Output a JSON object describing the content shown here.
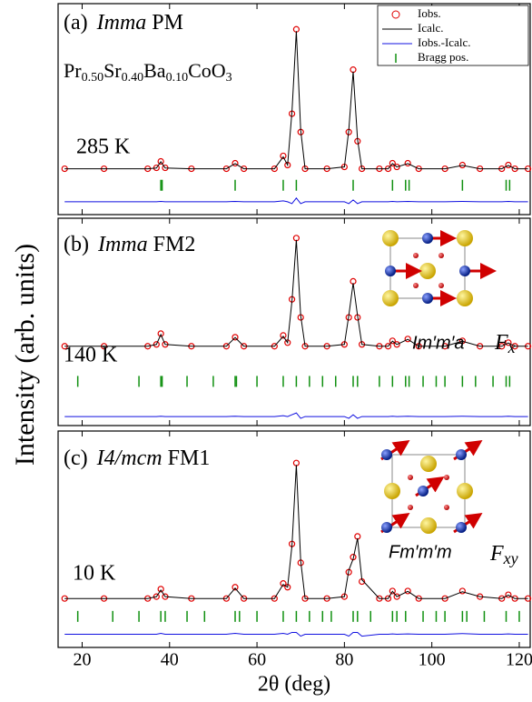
{
  "chart_data": [
    {
      "type": "line",
      "panel_label": "(a)",
      "space_group": "Imma",
      "phase": "PM",
      "formula_parts": [
        "Pr",
        "0.50",
        "Sr",
        "0.40",
        "Ba",
        "0.10",
        "CoO",
        "3"
      ],
      "temperature": "285 K",
      "legend": "upper right",
      "xlim": [
        14.5,
        122.5
      ],
      "xticks": [
        20,
        40,
        60,
        80,
        100,
        120
      ],
      "ylim": [
        -15,
        100
      ],
      "x": [
        16,
        25,
        35,
        37,
        38,
        39,
        45,
        53,
        55,
        57,
        64,
        66,
        67,
        68,
        69,
        70,
        71,
        76,
        80,
        81,
        82,
        83,
        84,
        88,
        90,
        91,
        92,
        94.5,
        97,
        103,
        107,
        111,
        116,
        117.5,
        119,
        122
      ],
      "series": [
        {
          "name": "Iobs.",
          "color": "#e00000",
          "marker": "circle",
          "values": [
            10,
            10,
            10,
            10.5,
            14,
            10.5,
            10,
            10,
            13,
            10,
            10,
            17,
            12,
            40,
            86,
            30,
            10,
            10,
            11,
            30,
            64,
            25,
            10,
            10,
            10,
            13,
            11,
            13,
            10,
            10,
            12,
            10,
            10,
            12,
            10,
            10
          ]
        },
        {
          "name": "Icalc.",
          "color": "#000000",
          "values": [
            10,
            10,
            10,
            10.4,
            13.8,
            10.4,
            10,
            10,
            12.8,
            10,
            10,
            16.5,
            12,
            41,
            85,
            31,
            10,
            10,
            11,
            31,
            63,
            26,
            10,
            10,
            10,
            12.8,
            11,
            12.8,
            10,
            10,
            11.8,
            10,
            10,
            11.8,
            10,
            10
          ]
        },
        {
          "name": "Iobs.-Icalc.",
          "color": "#1010e0",
          "values": [
            -8,
            -8,
            -8,
            -8,
            -7.8,
            -8,
            -8,
            -8,
            -7.8,
            -8,
            -8,
            -7.5,
            -8,
            -9,
            -6,
            -9,
            -8,
            -8,
            -8,
            -9,
            -7,
            -9,
            -8,
            -8,
            -8,
            -7.8,
            -8,
            -7.8,
            -8,
            -8,
            -7.8,
            -8,
            -8,
            -7.8,
            -8,
            -8
          ]
        }
      ],
      "bragg": {
        "name": "Bragg pos.",
        "color": "#109010",
        "positions": [
          38,
          38.3,
          55,
          66,
          69,
          82,
          91,
          94,
          94.8,
          107,
          117,
          117.8
        ]
      }
    },
    {
      "type": "line",
      "panel_label": "(b)",
      "space_group": "Imma",
      "phase": "FM2",
      "temperature": "140 K",
      "magnetic_group": "Im′m′a",
      "mode": "F",
      "mode_subscript": "x",
      "ylabel": "Intensity (arb. units)",
      "xlim": [
        14.5,
        122.5
      ],
      "xticks": [
        20,
        40,
        60,
        80,
        100,
        120
      ],
      "ylim": [
        -15,
        100
      ],
      "x": [
        16,
        25,
        35,
        37,
        38,
        39,
        45,
        53,
        55,
        57,
        64,
        66,
        67,
        68,
        69,
        70,
        71,
        76,
        80,
        81,
        82,
        83,
        84,
        88,
        90,
        91,
        92,
        94.5,
        97,
        103,
        107,
        111,
        116,
        117.5,
        119,
        122
      ],
      "series": [
        {
          "color": "#e00000",
          "marker": "circle",
          "values": [
            29,
            29,
            29,
            30,
            36,
            30,
            29,
            29,
            34,
            29,
            29,
            35,
            31,
            55,
            89,
            45,
            29,
            29,
            30,
            45,
            65,
            45,
            30,
            29,
            29,
            32,
            30,
            33,
            29,
            29,
            32,
            29,
            29,
            31,
            29,
            29
          ]
        },
        {
          "color": "#000000",
          "values": [
            29,
            29,
            29,
            30,
            35.5,
            30,
            29,
            29,
            33.8,
            29,
            29,
            34.5,
            31,
            54,
            88,
            46,
            29,
            29,
            30,
            46,
            64,
            46,
            30,
            29,
            29,
            31.8,
            30,
            32.8,
            29,
            29,
            31.8,
            29,
            29,
            30.8,
            29,
            29
          ]
        },
        {
          "color": "#1010e0",
          "values": [
            -10,
            -10,
            -10,
            -10,
            -9.8,
            -10,
            -10,
            -10,
            -9.8,
            -10,
            -10,
            -9.5,
            -10,
            -9,
            -8,
            -11,
            -10,
            -10,
            -10,
            -11,
            -9,
            -11,
            -10,
            -10,
            -10,
            -9.8,
            -10,
            -9.8,
            -10,
            -10,
            -9.8,
            -10,
            -10,
            -9.8,
            -10,
            -10
          ]
        }
      ],
      "bragg": {
        "color": "#109010",
        "positions": [
          19,
          33,
          38,
          38.3,
          44,
          50,
          55,
          55.3,
          60,
          66,
          69,
          72,
          75,
          78,
          82,
          83,
          88,
          91,
          94,
          94.8,
          98,
          101,
          103,
          107,
          110,
          114,
          117,
          117.8
        ]
      }
    },
    {
      "type": "line",
      "panel_label": "(c)",
      "space_group": "I4/mcm",
      "phase": "FM1",
      "temperature": "10 K",
      "magnetic_group": "Fm′m′m",
      "mode": "F",
      "mode_subscript": "xy",
      "xlabel": "2θ (deg)",
      "xlim": [
        14.5,
        122.5
      ],
      "xticks": [
        20,
        40,
        60,
        80,
        100,
        120
      ],
      "ylim": [
        -15,
        100
      ],
      "x": [
        16,
        25,
        35,
        37,
        38,
        39,
        45,
        53,
        55,
        57,
        64,
        66,
        67,
        68,
        69,
        70,
        71,
        76,
        80,
        81,
        82,
        83,
        84,
        88,
        90,
        91,
        92,
        94.5,
        97,
        103,
        107,
        111,
        116,
        117.5,
        119,
        122
      ],
      "series": [
        {
          "color": "#e00000",
          "marker": "circle",
          "values": [
            11,
            11,
            11,
            12,
            16,
            12,
            11,
            11,
            17,
            11,
            11,
            19,
            17,
            40,
            83,
            30,
            11,
            11,
            12,
            25,
            33,
            44,
            20,
            11,
            11,
            15,
            12,
            15,
            11,
            11,
            15,
            12,
            11,
            13,
            11,
            11
          ]
        },
        {
          "color": "#000000",
          "values": [
            11,
            11,
            11,
            12,
            15.5,
            12,
            11,
            11,
            16.5,
            11,
            11,
            18.5,
            17,
            39,
            82,
            31,
            11,
            11,
            12,
            26,
            32,
            43,
            21,
            11,
            11,
            14.8,
            12,
            14.8,
            11,
            11,
            14.6,
            12,
            11,
            12.8,
            11,
            11
          ]
        },
        {
          "color": "#1010e0",
          "values": [
            -8,
            -8,
            -8,
            -8,
            -7.5,
            -8,
            -8,
            -8,
            -7.5,
            -8,
            -8,
            -7.5,
            -8,
            -7,
            -7,
            -9,
            -8,
            -8,
            -8,
            -9,
            -7,
            -7,
            -9,
            -8,
            -8,
            -7.8,
            -8,
            -7.8,
            -8,
            -8,
            -7.6,
            -8,
            -8,
            -7.8,
            -8,
            -8
          ]
        }
      ],
      "bragg": {
        "color": "#109010",
        "positions": [
          19,
          27,
          33,
          38,
          39,
          44,
          48,
          55,
          56,
          60,
          66,
          69,
          72,
          75,
          77,
          82,
          83,
          86,
          91,
          92,
          94,
          98,
          101,
          103,
          107,
          108,
          112,
          117,
          120
        ]
      }
    }
  ]
}
